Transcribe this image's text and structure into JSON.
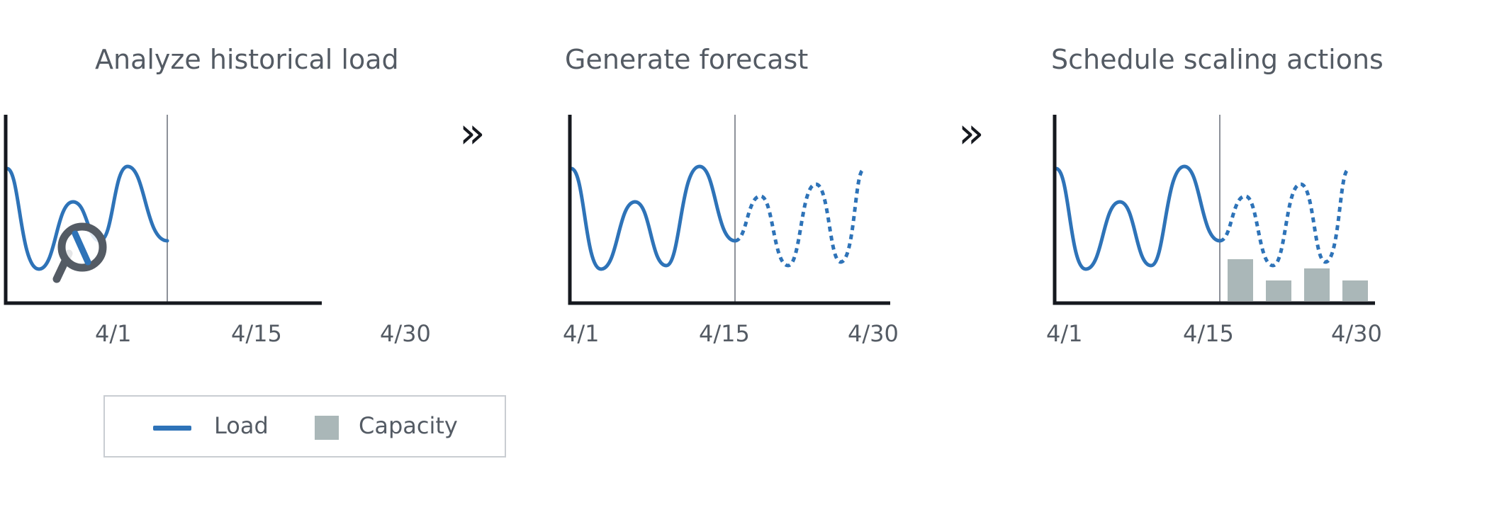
{
  "panels": [
    {
      "title": "Analyze historical load",
      "ticks": [
        "4/1",
        "4/15",
        "4/30"
      ],
      "icon": "magnifier-icon"
    },
    {
      "title": "Generate forecast",
      "ticks": [
        "4/1",
        "4/15",
        "4/30"
      ]
    },
    {
      "title": "Schedule scaling actions",
      "ticks": [
        "4/1",
        "4/15",
        "4/30"
      ],
      "capacity_levels": [
        0.45,
        0.22,
        0.35,
        0.22
      ]
    }
  ],
  "arrows": [
    "»",
    "»"
  ],
  "legend": {
    "load_label": "Load",
    "capacity_label": "Capacity"
  },
  "colors": {
    "load": "#2e73b8",
    "capacity": "#aab7b8",
    "axis": "#16191f",
    "text": "#545b64"
  }
}
